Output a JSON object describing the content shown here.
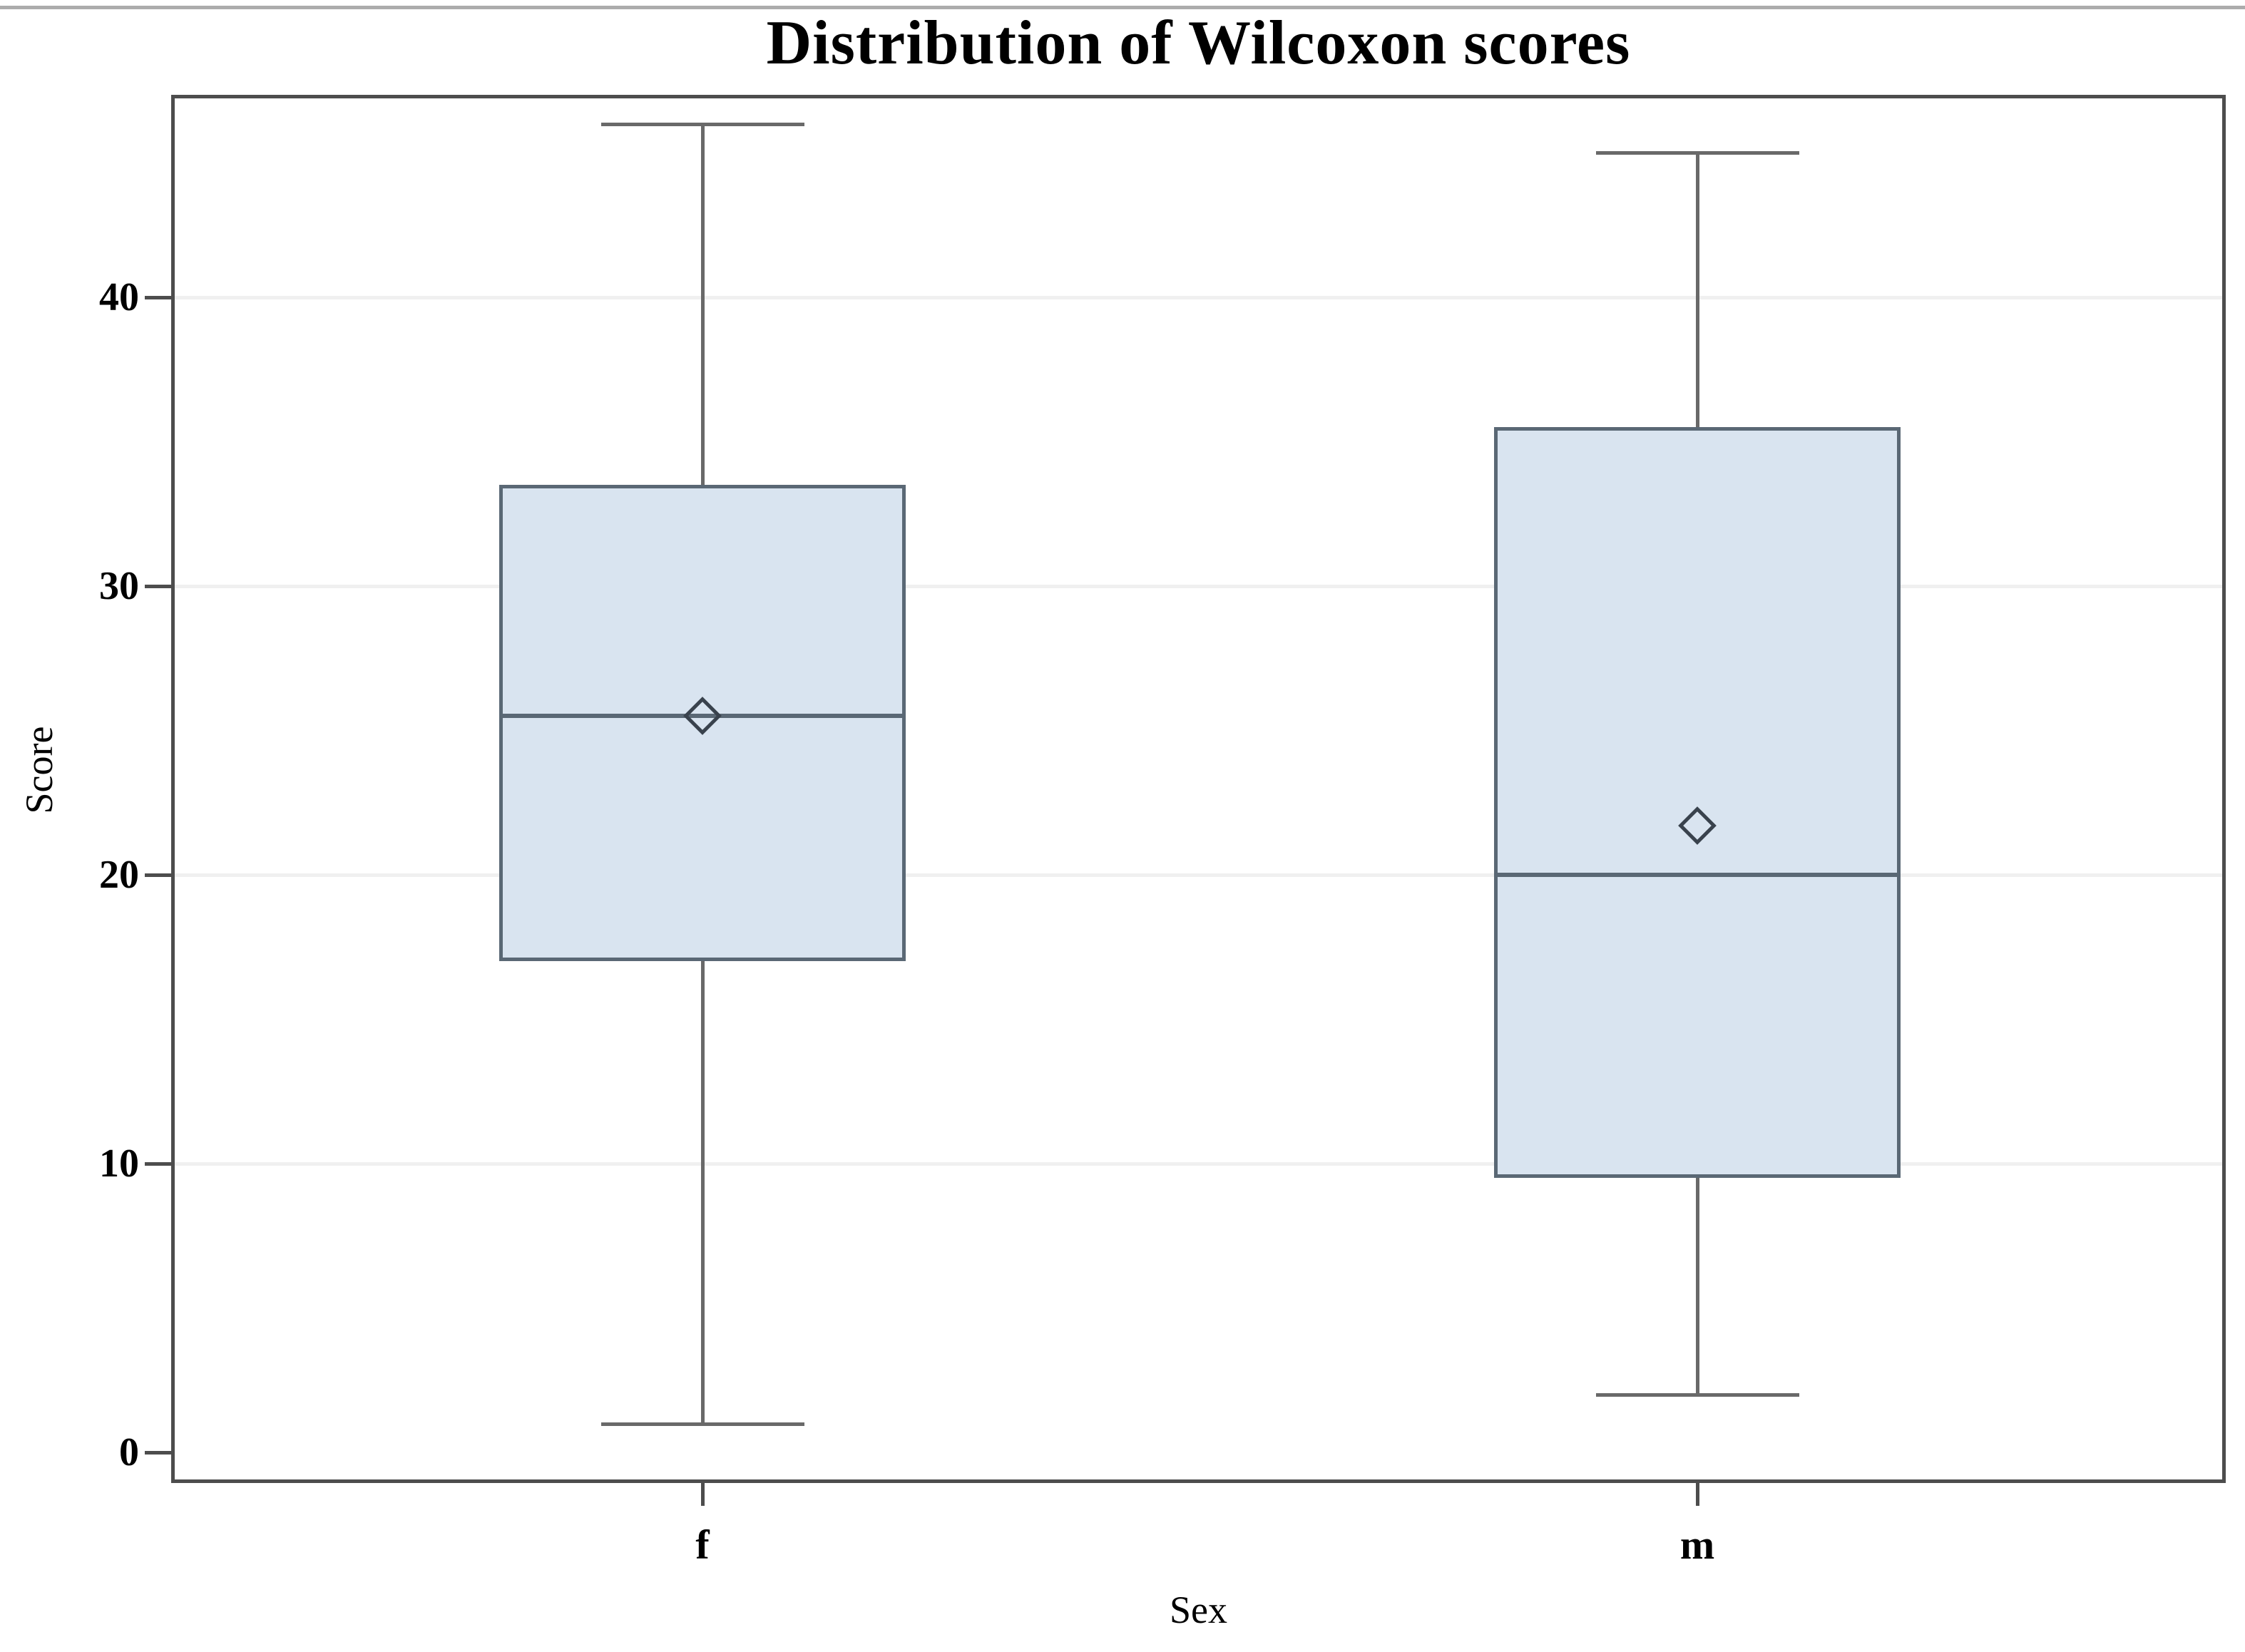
{
  "chart_data": {
    "type": "box",
    "title": "Distribution of Wilcoxon scores",
    "xlabel": "Sex",
    "ylabel": "Score",
    "categories": [
      "f",
      "m"
    ],
    "yticks": [
      0,
      10,
      20,
      30,
      40
    ],
    "ylim": [
      -1.06,
      47.0
    ],
    "grid": true,
    "legend": "none",
    "series": [
      {
        "category": "f",
        "min": 1,
        "q1": 17,
        "median": 25.5,
        "q3": 33.5,
        "max": 46,
        "mean": 25.5
      },
      {
        "category": "m",
        "min": 2,
        "q1": 9.5,
        "median": 20,
        "q3": 35.5,
        "max": 45,
        "mean": 21.7
      }
    ],
    "colors": {
      "box_fill": "#d9e4f0",
      "box_border": "#5a6875",
      "median_line": "#5a6875",
      "whisker": "#696969",
      "mean_marker_outline": "#39424d",
      "gridline": "#f0f0f0",
      "frame": "#4d4d4d",
      "text": "#000000",
      "background": "#ffffff"
    }
  }
}
